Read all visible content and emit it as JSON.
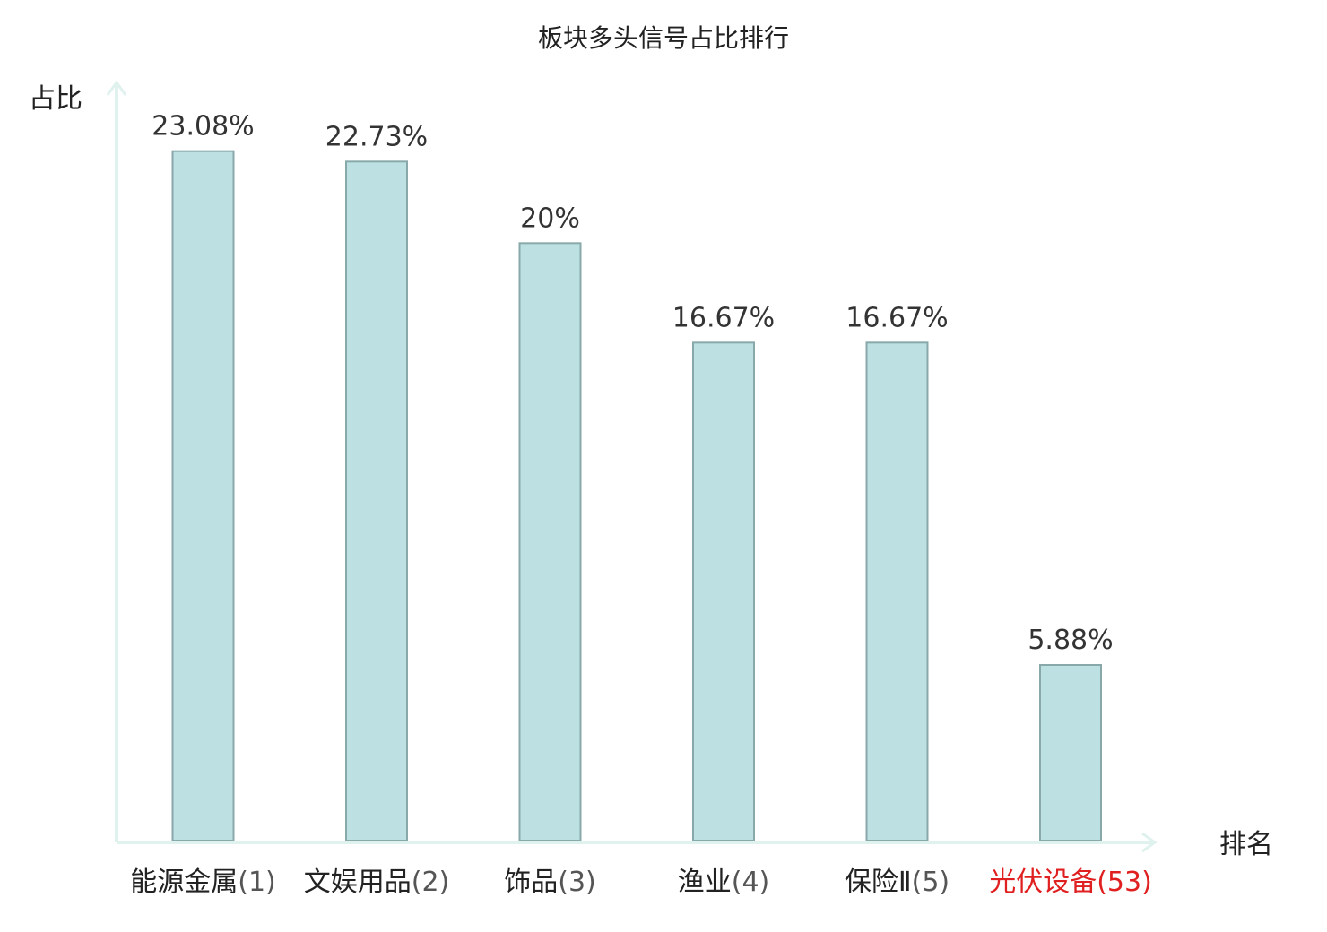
{
  "chart_data": {
    "type": "bar",
    "title": "板块多头信号占比排行",
    "ylabel": "占比",
    "xlabel": "排名",
    "ylim": [
      0,
      25.5
    ],
    "grid": false,
    "legend": "none",
    "categories": [
      {
        "name": "能源金属",
        "rank": "(1)",
        "highlight": false
      },
      {
        "name": "文娱用品",
        "rank": "(2)",
        "highlight": false
      },
      {
        "name": "饰品",
        "rank": "(3)",
        "highlight": false
      },
      {
        "name": "渔业",
        "rank": "(4)",
        "highlight": false
      },
      {
        "name": "保险Ⅱ",
        "rank": "(5)",
        "highlight": false
      },
      {
        "name": "光伏设备",
        "rank": "(53)",
        "highlight": true
      }
    ],
    "values": [
      23.08,
      22.73,
      20,
      16.67,
      16.67,
      5.88
    ],
    "value_labels": [
      "23.08%",
      "22.73%",
      "20%",
      "16.67%",
      "16.67%",
      "5.88%"
    ],
    "colors": {
      "bar_fill": "#bde0e2",
      "bar_stroke": "#88a8aa",
      "axis": "#dff2ee",
      "label_normal": "#222222",
      "rank_normal": "#555555",
      "label_highlight": "#e02020"
    }
  }
}
